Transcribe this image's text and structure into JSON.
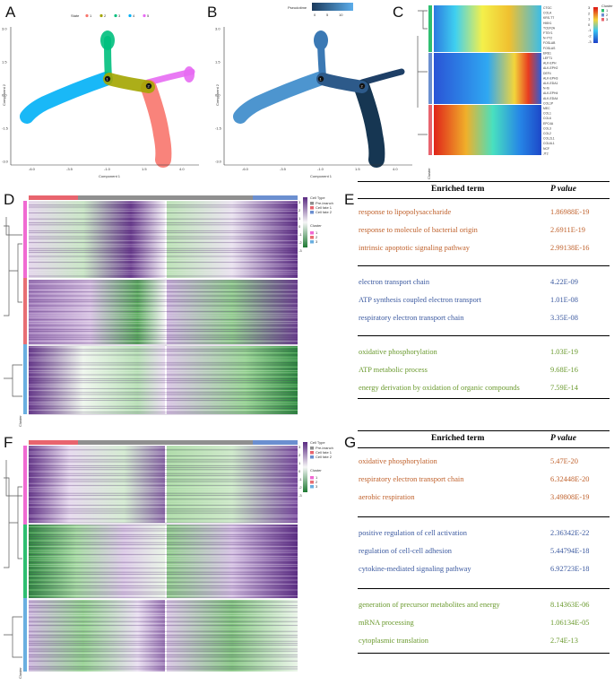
{
  "panels": {
    "A": "A",
    "B": "B",
    "C": "C",
    "D": "D",
    "E": "E",
    "F": "F",
    "G": "G"
  },
  "colors": {
    "state": [
      "#f8766d",
      "#a3a500",
      "#00bf7d",
      "#00b0f6",
      "#e76bf3"
    ],
    "orange": "#c0622d",
    "blue": "#3c5aa0",
    "green": "#6b9a2f",
    "celltype": [
      "#8f8f8f",
      "#e8646e",
      "#6b8fd0"
    ],
    "cluster": [
      "#f06ad2",
      "#e86e73",
      "#6aafe0"
    ]
  },
  "scatterA": {
    "legend_title": "State",
    "states": [
      "1",
      "2",
      "3",
      "4",
      "5"
    ],
    "xlabel": "Component 1",
    "ylabel": "Component 2",
    "xticks": [
      "-6.0",
      "-3.5",
      "-1.0",
      "1.5",
      "4.0"
    ],
    "yticks": [
      "3.0",
      "1.5",
      "0.0",
      "-1.5",
      "-3.0"
    ],
    "branch_nodes": [
      "1",
      "2"
    ]
  },
  "scatterB": {
    "legend_title": "Pseudotime",
    "scale_ticks": [
      "0",
      "5",
      "10"
    ],
    "xlabel": "Component 1",
    "ylabel": "Component 2",
    "xticks": [
      "-6.0",
      "-3.5",
      "-1.0",
      "1.5",
      "4.0"
    ],
    "yticks": [
      "3.0",
      "1.5",
      "0.0",
      "-1.5",
      "-3.0"
    ],
    "branch_nodes": [
      "1",
      "2"
    ]
  },
  "heatmapC": {
    "legend_title": "Cluster",
    "scale_ticks": [
      "3",
      "2",
      "1",
      "0",
      "-1",
      "-2",
      "-3"
    ],
    "clusters": [
      "1",
      "2",
      "3"
    ],
    "genes": [
      "CTGC",
      "COLA",
      "KRS-TT",
      "HMX1",
      "TCEF2A",
      "FTSY1",
      "N-YY2",
      "FOSLAB",
      "FOSLAS",
      "ERE1",
      "LEFT1",
      "ALK-EPH",
      "ALK-EPH2",
      "DEF4",
      "ALK-EPH3",
      "ALK-EDA1",
      "N-IS",
      "ALK-EPH4",
      "ALK-EDA4",
      "COL1P",
      "MEC",
      "COL1",
      "COL6",
      "EPC4A",
      "COL3",
      "COL2",
      "COL2L1",
      "COL6L1",
      "NCF",
      "JT2"
    ],
    "axis_label": "Cluster"
  },
  "heatmapD": {
    "legend_celltype_title": "Cell Type",
    "celltypes": [
      "Pre-branch",
      "Cell fate 1",
      "Cell fate 2"
    ],
    "legend_cluster_title": "Cluster",
    "clusters": [
      "1",
      "2",
      "3"
    ],
    "scale_ticks": [
      "3",
      "2",
      "1",
      "0",
      "-1",
      "-2",
      "-3"
    ],
    "side_label": "Cluster"
  },
  "heatmapF": {
    "legend_celltype_title": "Cell Type",
    "celltypes": [
      "Pre-branch",
      "Cell fate 1",
      "Cell fate 2"
    ],
    "legend_cluster_title": "Cluster",
    "clusters": [
      "1",
      "2",
      "3"
    ],
    "scale_ticks": [
      "3",
      "2",
      "1",
      "0",
      "-1",
      "-2",
      "-3"
    ],
    "side_label": "Cluster"
  },
  "tableE": {
    "header_term": "Enriched term",
    "header_p": "P value",
    "groups": [
      {
        "color": "orange",
        "rows": [
          {
            "term": "response to lipopolysaccharide",
            "p": "1.86988E-19"
          },
          {
            "term": "response to molecule of bacterial origin",
            "p": "2.6911E-19"
          },
          {
            "term": "intrinsic apoptotic signaling pathway",
            "p": "2.99138E-16"
          }
        ]
      },
      {
        "color": "blue",
        "rows": [
          {
            "term": "electron transport chain",
            "p": "4.22E-09"
          },
          {
            "term": "ATP synthesis coupled electron transport",
            "p": "1.01E-08"
          },
          {
            "term": "respiratory electron transport chain",
            "p": "3.35E-08"
          }
        ]
      },
      {
        "color": "green",
        "rows": [
          {
            "term": "oxidative phosphorylation",
            "p": "1.03E-19"
          },
          {
            "term": "ATP metabolic process",
            "p": "9.68E-16"
          },
          {
            "term": "energy derivation by oxidation of organic compounds",
            "p": "7.59E-14"
          }
        ]
      }
    ]
  },
  "tableG": {
    "header_term": "Enriched term",
    "header_p": "P value",
    "groups": [
      {
        "color": "orange",
        "rows": [
          {
            "term": "oxidative phosphorylation",
            "p": "5.47E-20"
          },
          {
            "term": "respiratory electron transport chain",
            "p": "6.32448E-20"
          },
          {
            "term": "aerobic respiration",
            "p": "3.49808E-19"
          }
        ]
      },
      {
        "color": "blue",
        "rows": [
          {
            "term": "positive regulation of cell activation",
            "p": "2.36342E-22"
          },
          {
            "term": "regulation of cell-cell adhesion",
            "p": "5.44794E-18"
          },
          {
            "term": "cytokine-mediated signaling pathway",
            "p": "6.92723E-18"
          }
        ]
      },
      {
        "color": "green",
        "rows": [
          {
            "term": "generation of precursor metabolites and energy",
            "p": "8.14363E-06"
          },
          {
            "term": "mRNA processing",
            "p": "1.06134E-05"
          },
          {
            "term": "cytoplasmic translation",
            "p": "2.74E-13"
          }
        ]
      }
    ]
  }
}
